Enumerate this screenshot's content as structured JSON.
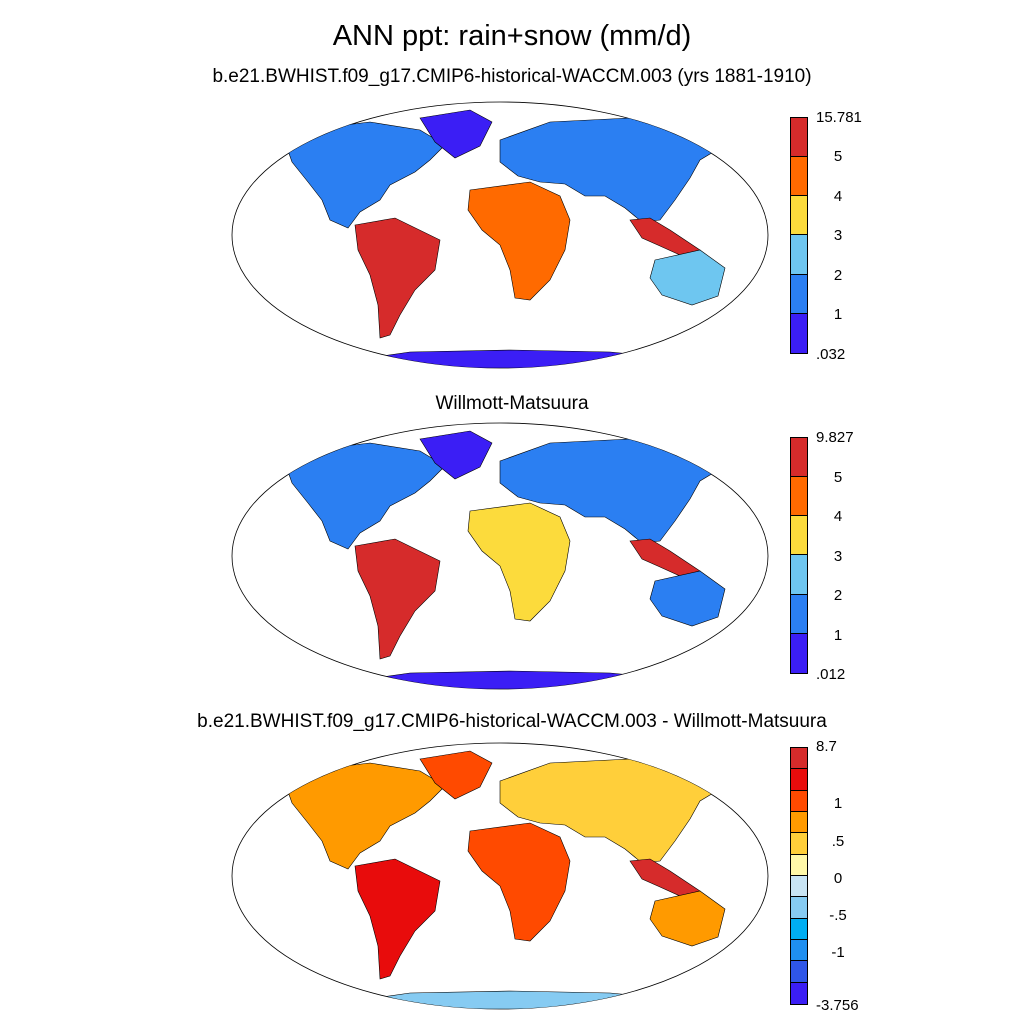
{
  "figure": {
    "title": "ANN ppt: rain+snow (mm/d)"
  },
  "panels": [
    {
      "id": "model",
      "title": "b.e21.BWHIST.f09_g17.CMIP6-historical-WACCM.003 (yrs 1881-1910)",
      "colorbar": {
        "max_label": "15.781",
        "min_label": ".032",
        "tick_labels": [
          "5",
          "4",
          "3",
          "2",
          "1"
        ],
        "colors": [
          "#d62b2b",
          "#ff6a00",
          "#fcdb3c",
          "#6ec6f0",
          "#2b7ff2",
          "#3b1ef5"
        ]
      }
    },
    {
      "id": "obs",
      "title": "Willmott-Matsuura",
      "colorbar": {
        "max_label": "9.827",
        "min_label": ".012",
        "tick_labels": [
          "5",
          "4",
          "3",
          "2",
          "1"
        ],
        "colors": [
          "#d62b2b",
          "#ff6a00",
          "#fcdb3c",
          "#6ec6f0",
          "#2b7ff2",
          "#3b1ef5"
        ]
      }
    },
    {
      "id": "diff",
      "title": "b.e21.BWHIST.f09_g17.CMIP6-historical-WACCM.003 - Willmott-Matsuura",
      "colorbar": {
        "max_label": "8.7",
        "min_label": "-3.756",
        "tick_labels": [
          "1",
          ".5",
          "0",
          "-.5",
          "-1"
        ],
        "colors": [
          "#d62b2b",
          "#e80c0c",
          "#ff4a00",
          "#ff9a00",
          "#ffcf3a",
          "#fff8a8",
          "#c8e4f4",
          "#86cbf2",
          "#00aef2",
          "#1f8ff0",
          "#2f56e8",
          "#3b1ef5"
        ]
      }
    }
  ]
}
